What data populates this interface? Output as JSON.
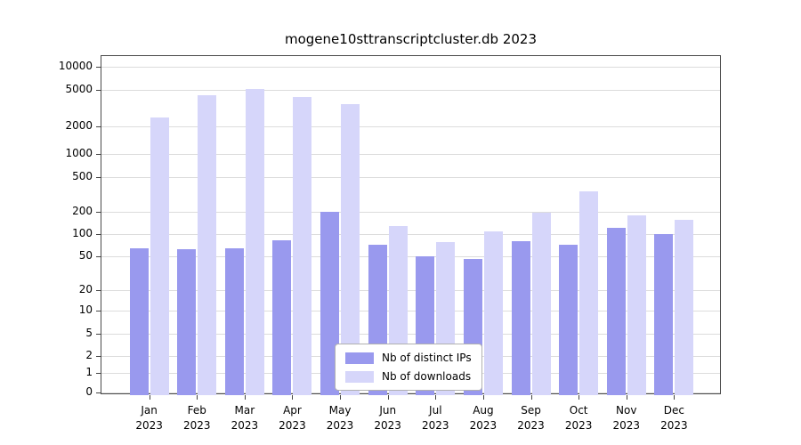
{
  "chart_data": {
    "type": "bar",
    "title": "mogene10sttranscriptcluster.db 2023",
    "xlabel": "",
    "ylabel": "",
    "yscale": "symlog",
    "grid": true,
    "legend_position": "bottom-center",
    "yticks": [
      0,
      1,
      2,
      5,
      10,
      20,
      50,
      100,
      200,
      500,
      1000,
      2000,
      5000,
      10000
    ],
    "ylim": [
      0,
      13000
    ],
    "categories": [
      "Jan",
      "Feb",
      "Mar",
      "Apr",
      "May",
      "Jun",
      "Jul",
      "Aug",
      "Sep",
      "Oct",
      "Nov",
      "Dec"
    ],
    "year": "2023",
    "series": [
      {
        "name": "Nb of distinct IPs",
        "color": "#9999ee",
        "values": [
          65,
          62,
          65,
          82,
          200,
          72,
          50,
          47,
          80,
          72,
          120,
          100
        ]
      },
      {
        "name": "Nb of downloads",
        "color": "#d6d6fa",
        "values": [
          2500,
          4400,
          5100,
          4200,
          3500,
          130,
          78,
          110,
          195,
          340,
          180,
          155
        ]
      }
    ]
  }
}
